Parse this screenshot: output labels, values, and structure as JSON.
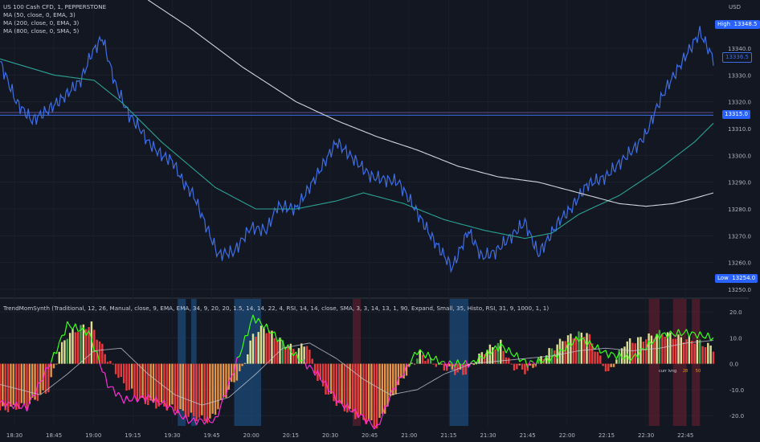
{
  "header": {
    "symbol_line": "US 100 Cash CFD, 1, PEPPERSTONE",
    "ma_lines": [
      "MA (50, close, 0, EMA, 3)",
      "MA (200, close, 0, EMA, 3)",
      "MA (800, close, 0, SMA, 5)"
    ],
    "currency": "USD"
  },
  "indicator": {
    "title": "TrendMomSynth (Traditional, 12, 26, Manual, close, 9, EMA, EMA, 34, 9, 20, 20, 1.5, 14, 14, 22, 4, RSI, 14, 14, close, SMA, 3, 3, 14, 13, 1, 90, Expand, Small, 35, Histo, RSI, 31, 9, 1000, 1, 1)",
    "mini_label": "curr lvng",
    "mini_values": [
      "28",
      "50"
    ]
  },
  "price_tags": {
    "high_label": "High",
    "high_value": "13348.5",
    "last_value": "13336.5",
    "line_value": "13315.0",
    "low_label": "Low",
    "low_value": "13254.0"
  },
  "colors": {
    "background": "#131722",
    "price": "#3d6ee6",
    "ema50": "#2ba394",
    "sma800": "#d1d4dc",
    "hist_up": "#f5f5a0",
    "hist_up2": "#4caf50",
    "hist_down": "#ff4040",
    "hist_down2": "#ffa24a",
    "osc_line": "#39ff14",
    "osc_down": "#ff2bd6",
    "signal": "#c7cbd6",
    "blue_band": "#1c4a7a",
    "red_band": "#5a1f2e"
  },
  "chart_data": [
    {
      "type": "line",
      "title": "US 100 Cash CFD, 1, PEPPERSTONE",
      "x_ticks": [
        "18:30",
        "18:45",
        "19:00",
        "19:15",
        "19:30",
        "19:45",
        "20:00",
        "20:15",
        "20:30",
        "20:45",
        "21:00",
        "21:15",
        "21:30",
        "21:45",
        "22:00",
        "22:15",
        "22:30",
        "22:45"
      ],
      "y_ticks": [
        13250.0,
        13260.0,
        13270.0,
        13280.0,
        13290.0,
        13300.0,
        13310.0,
        13320.0,
        13330.0,
        13340.0
      ],
      "ylim": [
        13247,
        13358
      ],
      "xlim": [
        0,
        265
      ],
      "series": [
        {
          "name": "US 100 Cash CFD",
          "x": [
            0,
            6,
            12,
            18,
            24,
            30,
            34,
            38,
            43,
            48,
            52,
            55,
            60,
            64,
            68,
            72,
            76,
            81,
            87,
            93,
            99,
            103,
            110,
            118,
            125,
            132,
            138,
            148,
            153,
            160,
            168,
            174,
            179,
            184,
            190,
            195,
            200,
            208,
            212,
            218,
            225,
            230,
            236,
            240,
            244,
            248,
            254,
            260,
            265
          ],
          "y": [
            13335,
            13320,
            13313,
            13317,
            13322,
            13328,
            13338,
            13344,
            13326,
            13315,
            13310,
            13305,
            13300,
            13298,
            13290,
            13285,
            13275,
            13263,
            13264,
            13273,
            13272,
            13281,
            13280,
            13293,
            13305,
            13298,
            13292,
            13290,
            13282,
            13270,
            13258,
            13272,
            13262,
            13264,
            13270,
            13275,
            13263,
            13276,
            13280,
            13289,
            13292,
            13297,
            13303,
            13308,
            13318,
            13326,
            13336,
            13346,
            13336
          ]
        },
        {
          "name": "MA 50 EMA",
          "x": [
            0,
            20,
            35,
            45,
            60,
            80,
            95,
            110,
            125,
            135,
            150,
            165,
            180,
            195,
            205,
            215,
            230,
            245,
            258,
            265
          ],
          "y": [
            13336,
            13330,
            13328,
            13320,
            13305,
            13288,
            13280,
            13280,
            13283,
            13286,
            13282,
            13276,
            13272,
            13269,
            13271,
            13278,
            13285,
            13295,
            13305,
            13312
          ]
        },
        {
          "name": "MA 800 SMA",
          "x": [
            55,
            70,
            90,
            110,
            125,
            140,
            155,
            170,
            185,
            200,
            215,
            230,
            240,
            250,
            258,
            265
          ],
          "y": [
            13358,
            13348,
            13333,
            13320,
            13313,
            13307,
            13302,
            13296,
            13292,
            13290,
            13286,
            13282,
            13281,
            13282,
            13284,
            13286
          ]
        }
      ]
    },
    {
      "type": "bar",
      "title": "TrendMomSynth",
      "y_ticks": [
        -20.0,
        -10.0,
        0.0,
        10.0,
        20.0
      ],
      "ylim": [
        -24,
        25
      ],
      "n_bars": 266,
      "histogram_shape_anchors": {
        "x": [
          0,
          10,
          18,
          22,
          25,
          30,
          34,
          40,
          46,
          52,
          58,
          64,
          70,
          78,
          85,
          90,
          94,
          98,
          104,
          110,
          114,
          118,
          122,
          126,
          132,
          140,
          145,
          150,
          156,
          160,
          166,
          172,
          180,
          186,
          190,
          196,
          202,
          210,
          218,
          226,
          232,
          240,
          246,
          252,
          258,
          265
        ],
        "y": [
          -18,
          -16,
          -10,
          5,
          11,
          14,
          15,
          2,
          -8,
          -14,
          -16,
          -17,
          -20,
          -22,
          -10,
          -2,
          11,
          14,
          9,
          5,
          8,
          -6,
          -12,
          -16,
          -20,
          -24,
          -14,
          -5,
          4,
          1,
          -2,
          -4,
          5,
          8,
          -1,
          -3,
          3,
          10,
          12,
          -4,
          8,
          10,
          12,
          10,
          9,
          6
        ]
      },
      "oscillator_anchors": {
        "x": [
          0,
          10,
          20,
          25,
          33,
          40,
          46,
          55,
          62,
          70,
          80,
          86,
          94,
          100,
          110,
          118,
          126,
          134,
          140,
          146,
          155,
          165,
          175,
          186,
          196,
          205,
          215,
          225,
          235,
          245,
          255,
          265
        ],
        "y": [
          -15,
          -17,
          3,
          15,
          12,
          -8,
          -14,
          -13,
          -16,
          -22,
          -22,
          -5,
          18,
          13,
          3,
          -4,
          -15,
          -20,
          -25,
          -10,
          5,
          0,
          0,
          7,
          0,
          2,
          10,
          4,
          2,
          11,
          12,
          10
        ]
      },
      "signal_anchors": {
        "x": [
          0,
          15,
          25,
          35,
          45,
          55,
          65,
          75,
          85,
          95,
          105,
          115,
          125,
          135,
          145,
          155,
          165,
          175,
          185,
          195,
          205,
          215,
          225,
          235,
          245,
          255,
          265
        ],
        "y": [
          -8,
          -12,
          -4,
          5,
          6,
          -4,
          -12,
          -16,
          -13,
          -4,
          6,
          8,
          2,
          -6,
          -12,
          -10,
          -4,
          0,
          1,
          2,
          3,
          5,
          6,
          5,
          6,
          8,
          9
        ]
      }
    }
  ]
}
